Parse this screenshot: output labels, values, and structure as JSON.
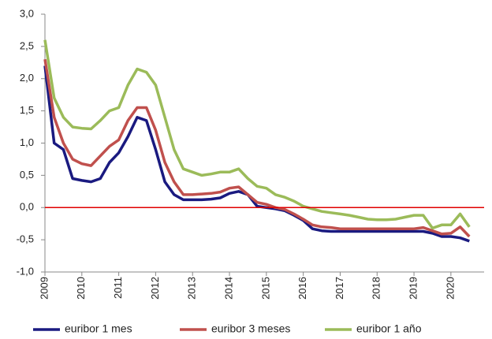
{
  "chart_data": {
    "type": "line",
    "x": [
      2009,
      2009.25,
      2009.5,
      2009.75,
      2010,
      2010.25,
      2010.5,
      2010.75,
      2011,
      2011.25,
      2011.5,
      2011.75,
      2012,
      2012.25,
      2012.5,
      2012.75,
      2013,
      2013.25,
      2013.5,
      2013.75,
      2014,
      2014.25,
      2014.5,
      2014.75,
      2015,
      2015.25,
      2015.5,
      2015.75,
      2016,
      2016.25,
      2016.5,
      2016.75,
      2017,
      2017.25,
      2017.5,
      2017.75,
      2018,
      2018.25,
      2018.5,
      2018.75,
      2019,
      2019.25,
      2019.5,
      2019.75,
      2020,
      2020.25,
      2020.5
    ],
    "series": [
      {
        "name": "euribor 1 mes",
        "color": "#1a1a80",
        "values": [
          2.2,
          1.0,
          0.9,
          0.45,
          0.42,
          0.4,
          0.45,
          0.7,
          0.85,
          1.1,
          1.4,
          1.35,
          0.9,
          0.4,
          0.2,
          0.12,
          0.12,
          0.12,
          0.13,
          0.15,
          0.22,
          0.25,
          0.2,
          0.02,
          0.0,
          -0.02,
          -0.05,
          -0.12,
          -0.2,
          -0.33,
          -0.36,
          -0.37,
          -0.37,
          -0.37,
          -0.37,
          -0.37,
          -0.37,
          -0.37,
          -0.37,
          -0.37,
          -0.37,
          -0.37,
          -0.4,
          -0.45,
          -0.45,
          -0.47,
          -0.52
        ]
      },
      {
        "name": "euribor 3 meses",
        "color": "#c0504d",
        "values": [
          2.3,
          1.4,
          1.0,
          0.75,
          0.68,
          0.65,
          0.8,
          0.95,
          1.05,
          1.35,
          1.55,
          1.55,
          1.2,
          0.7,
          0.4,
          0.2,
          0.2,
          0.21,
          0.22,
          0.24,
          0.3,
          0.32,
          0.2,
          0.08,
          0.05,
          0.0,
          -0.03,
          -0.1,
          -0.18,
          -0.27,
          -0.3,
          -0.31,
          -0.33,
          -0.33,
          -0.33,
          -0.33,
          -0.33,
          -0.33,
          -0.33,
          -0.33,
          -0.33,
          -0.31,
          -0.36,
          -0.41,
          -0.4,
          -0.3,
          -0.45
        ]
      },
      {
        "name": "euribor 1 año",
        "color": "#9bbb59",
        "values": [
          2.6,
          1.7,
          1.4,
          1.25,
          1.23,
          1.22,
          1.35,
          1.5,
          1.55,
          1.9,
          2.15,
          2.1,
          1.9,
          1.4,
          0.9,
          0.6,
          0.55,
          0.5,
          0.52,
          0.55,
          0.55,
          0.6,
          0.45,
          0.33,
          0.3,
          0.2,
          0.16,
          0.1,
          0.02,
          -0.02,
          -0.06,
          -0.08,
          -0.1,
          -0.12,
          -0.15,
          -0.18,
          -0.19,
          -0.19,
          -0.18,
          -0.15,
          -0.12,
          -0.12,
          -0.32,
          -0.27,
          -0.27,
          -0.1,
          -0.3
        ]
      }
    ],
    "xlim": [
      2009,
      2020.9
    ],
    "xticks": [
      2009,
      2010,
      2011,
      2012,
      2013,
      2014,
      2015,
      2016,
      2017,
      2018,
      2019,
      2020
    ],
    "ylim": [
      -1,
      3
    ],
    "yticks": [
      {
        "value": -1,
        "label": "-1,0"
      },
      {
        "value": -0.5,
        "label": "-0,5"
      },
      {
        "value": 0,
        "label": "0,0"
      },
      {
        "value": 0.5,
        "label": "0,5"
      },
      {
        "value": 1,
        "label": "1,0"
      },
      {
        "value": 1.5,
        "label": "1,5"
      },
      {
        "value": 2,
        "label": "2,0"
      },
      {
        "value": 2.5,
        "label": "2,5"
      },
      {
        "value": 3,
        "label": "3,0"
      }
    ],
    "hlines": [
      0
    ],
    "hline_color": "#e00000",
    "legend": "bottom"
  }
}
